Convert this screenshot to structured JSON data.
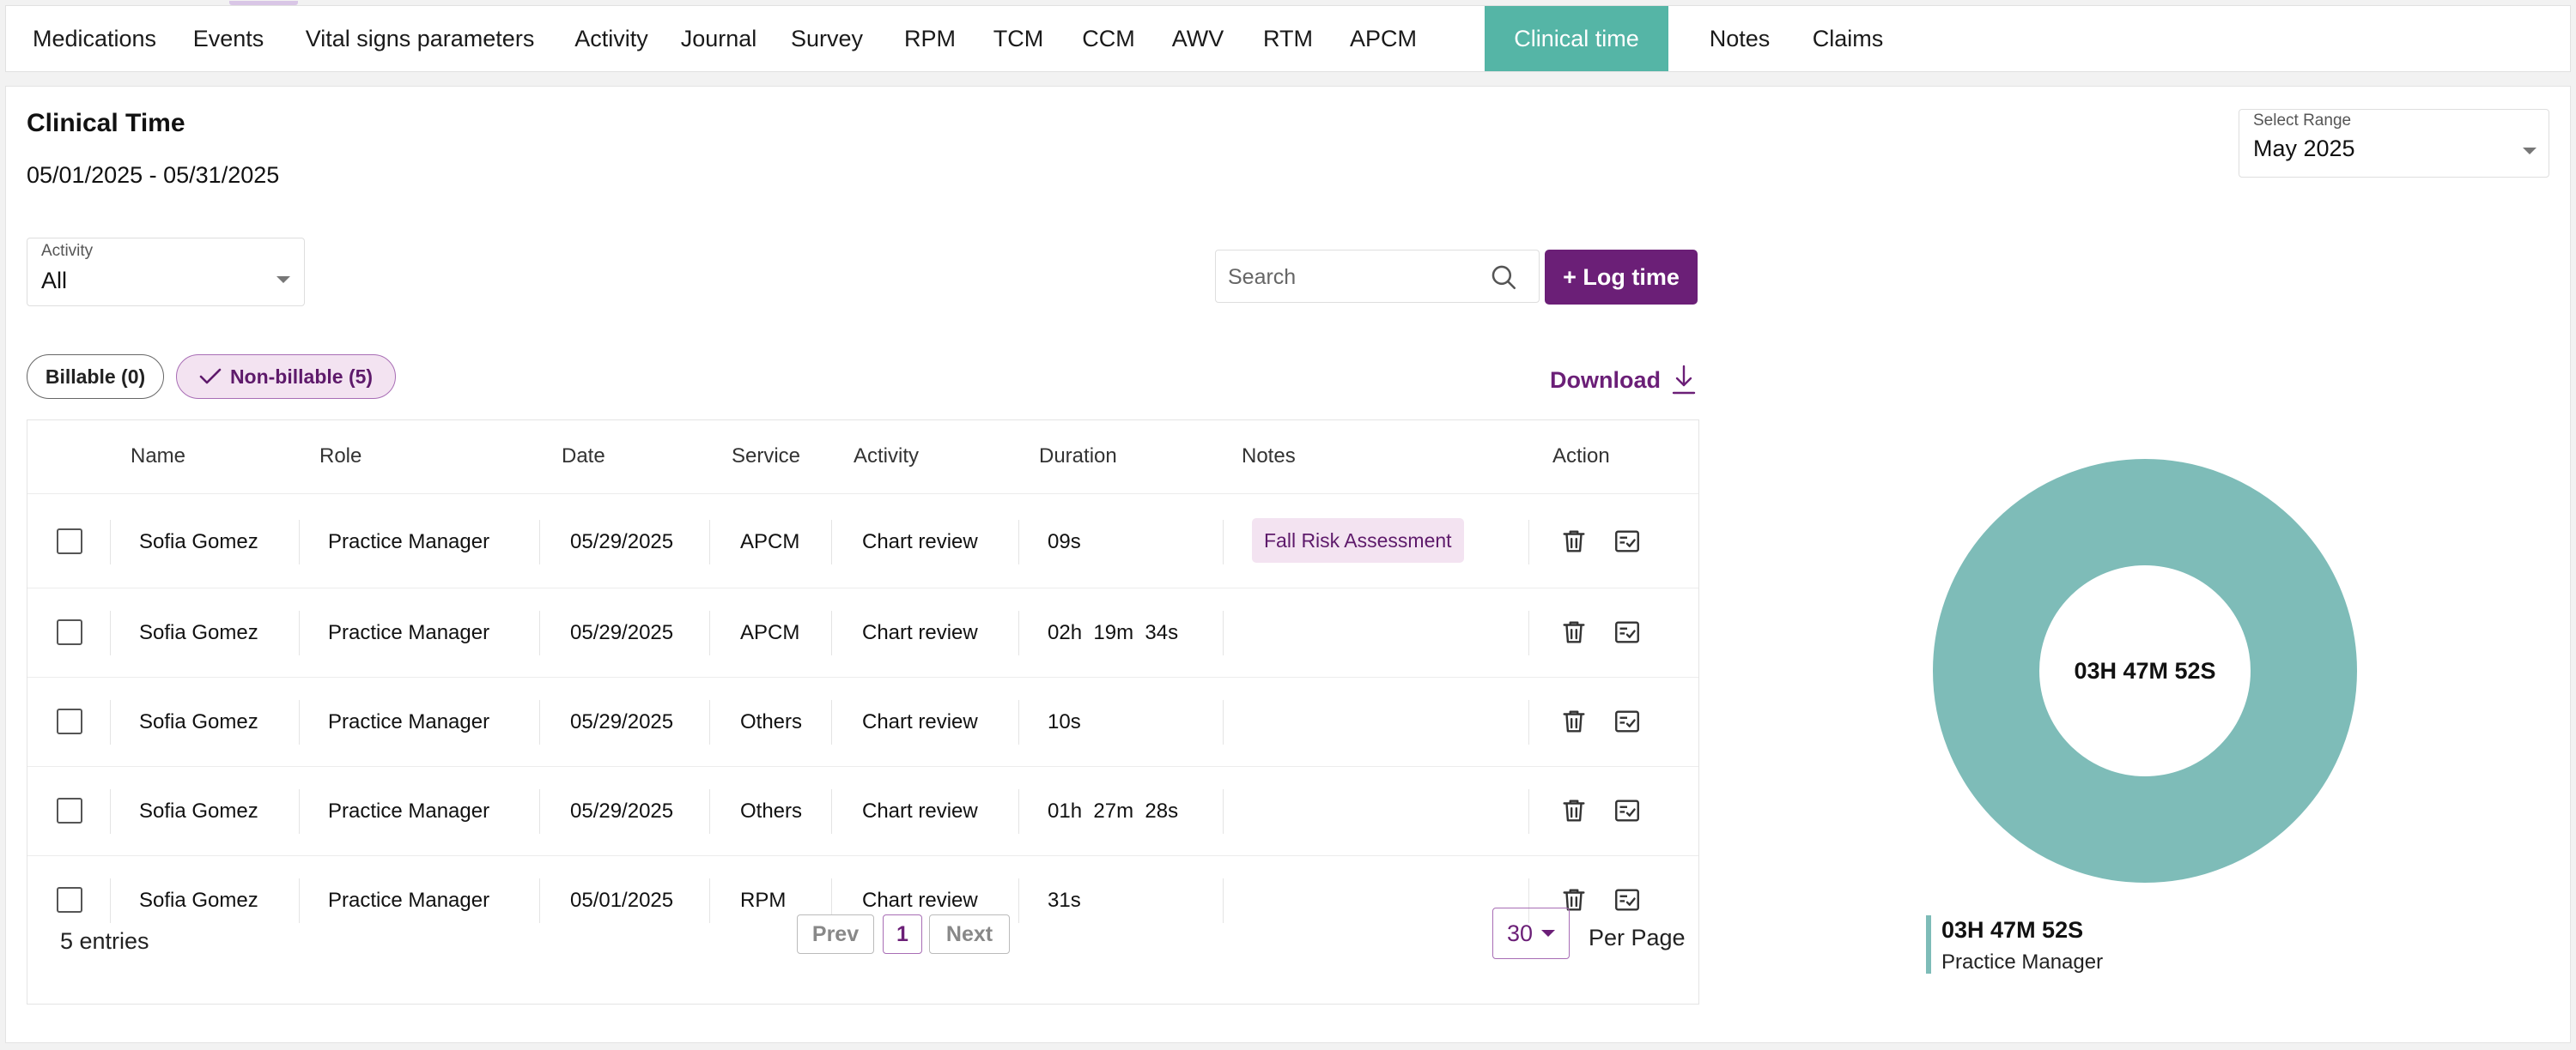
{
  "nav": {
    "tabs": [
      {
        "label": "Medications"
      },
      {
        "label": "Events"
      },
      {
        "label": "Vital signs parameters"
      },
      {
        "label": "Activity"
      },
      {
        "label": "Journal"
      },
      {
        "label": "Survey"
      },
      {
        "label": "RPM"
      },
      {
        "label": "TCM"
      },
      {
        "label": "CCM"
      },
      {
        "label": "AWV"
      },
      {
        "label": "RTM"
      },
      {
        "label": "APCM"
      },
      {
        "label": "Clinical time",
        "active": true
      },
      {
        "label": "Notes"
      },
      {
        "label": "Claims"
      }
    ]
  },
  "header": {
    "title": "Clinical Time",
    "date_range": "05/01/2025 - 05/31/2025"
  },
  "range_select": {
    "label": "Select Range",
    "value": "May 2025"
  },
  "activity_filter": {
    "label": "Activity",
    "value": "All"
  },
  "search": {
    "placeholder": "Search",
    "value": ""
  },
  "log_time_button": "+ Log time",
  "filters": {
    "billable": "Billable (0)",
    "non_billable": "Non-billable (5)",
    "selected": "non_billable"
  },
  "download_label": "Download",
  "table": {
    "headers": {
      "name": "Name",
      "role": "Role",
      "date": "Date",
      "service": "Service",
      "activity": "Activity",
      "duration": "Duration",
      "notes": "Notes",
      "action": "Action"
    },
    "rows": [
      {
        "name": "Sofia Gomez",
        "role": "Practice Manager",
        "date": "05/29/2025",
        "service": "APCM",
        "activity": "Chart review",
        "duration": "09s",
        "notes": "Fall Risk Assessment"
      },
      {
        "name": "Sofia Gomez",
        "role": "Practice Manager",
        "date": "05/29/2025",
        "service": "APCM",
        "activity": "Chart review",
        "duration": "02h  19m  34s",
        "notes": ""
      },
      {
        "name": "Sofia Gomez",
        "role": "Practice Manager",
        "date": "05/29/2025",
        "service": "Others",
        "activity": "Chart review",
        "duration": "10s",
        "notes": ""
      },
      {
        "name": "Sofia Gomez",
        "role": "Practice Manager",
        "date": "05/29/2025",
        "service": "Others",
        "activity": "Chart review",
        "duration": "01h  27m  28s",
        "notes": ""
      },
      {
        "name": "Sofia Gomez",
        "role": "Practice Manager",
        "date": "05/01/2025",
        "service": "RPM",
        "activity": "Chart review",
        "duration": "31s",
        "notes": ""
      }
    ]
  },
  "pagination": {
    "entries": "5 entries",
    "prev": "Prev",
    "current_page": "1",
    "next": "Next",
    "per_page_value": "30",
    "per_page_label": "Per Page"
  },
  "summary": {
    "total": "03H 47M 52S",
    "legend": [
      {
        "value": "03H 47M 52S",
        "label": "Practice Manager",
        "color": "#7ebcb8"
      }
    ]
  },
  "colors": {
    "accent": "#6b1f77",
    "active_tab": "#55b5a6",
    "chip_bg": "#f3e3f1",
    "donut": "#7ebcb8"
  },
  "icons": {
    "search": "search-icon",
    "download": "download-icon",
    "delete": "trash-icon",
    "edit_note": "note-check-icon",
    "check": "check-icon",
    "dropdown": "chevron-down-icon"
  }
}
